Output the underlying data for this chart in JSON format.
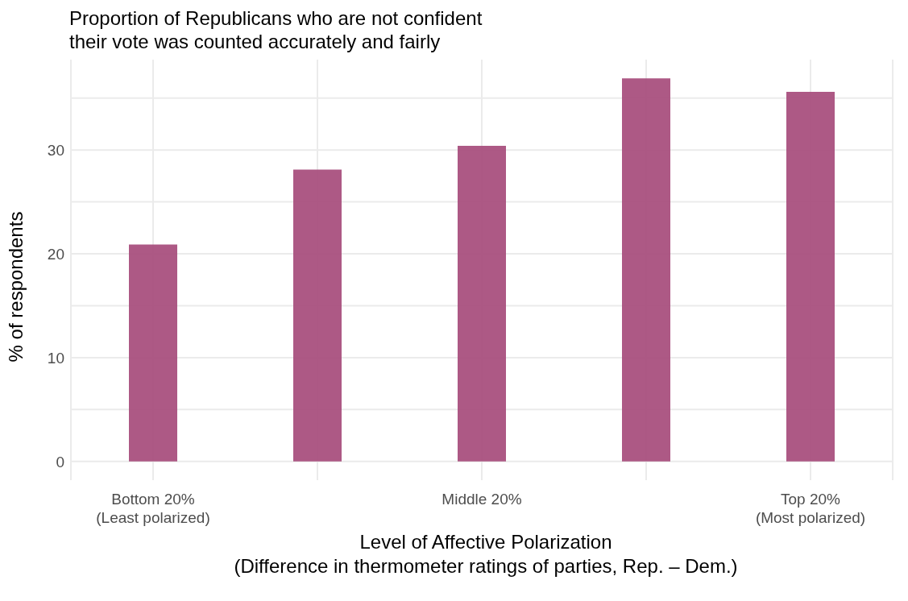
{
  "chart_data": {
    "type": "bar",
    "title": "Proportion of Republicans who are not confident\ntheir vote was counted accurately and fairly",
    "xlabel": "Level of Affective Polarization\n(Difference in thermometer ratings of parties, Rep. – Dem.)",
    "ylabel": "% of respondents",
    "categories": [
      "Bottom 20%\n(Least polarized)",
      null,
      "Middle 20%",
      null,
      "Top 20%\n(Most polarized)"
    ],
    "values": [
      20.9,
      28.1,
      30.4,
      36.9,
      35.6
    ],
    "color": "#a9507e",
    "ylim": [
      -1.8,
      38.7
    ],
    "yticks": [
      0,
      {
        "value": 5,
        "label": null
      },
      10,
      {
        "value": 15,
        "label": null
      },
      20,
      {
        "value": 25,
        "label": null
      },
      30,
      {
        "value": 35,
        "label": null
      }
    ],
    "grid": true
  }
}
